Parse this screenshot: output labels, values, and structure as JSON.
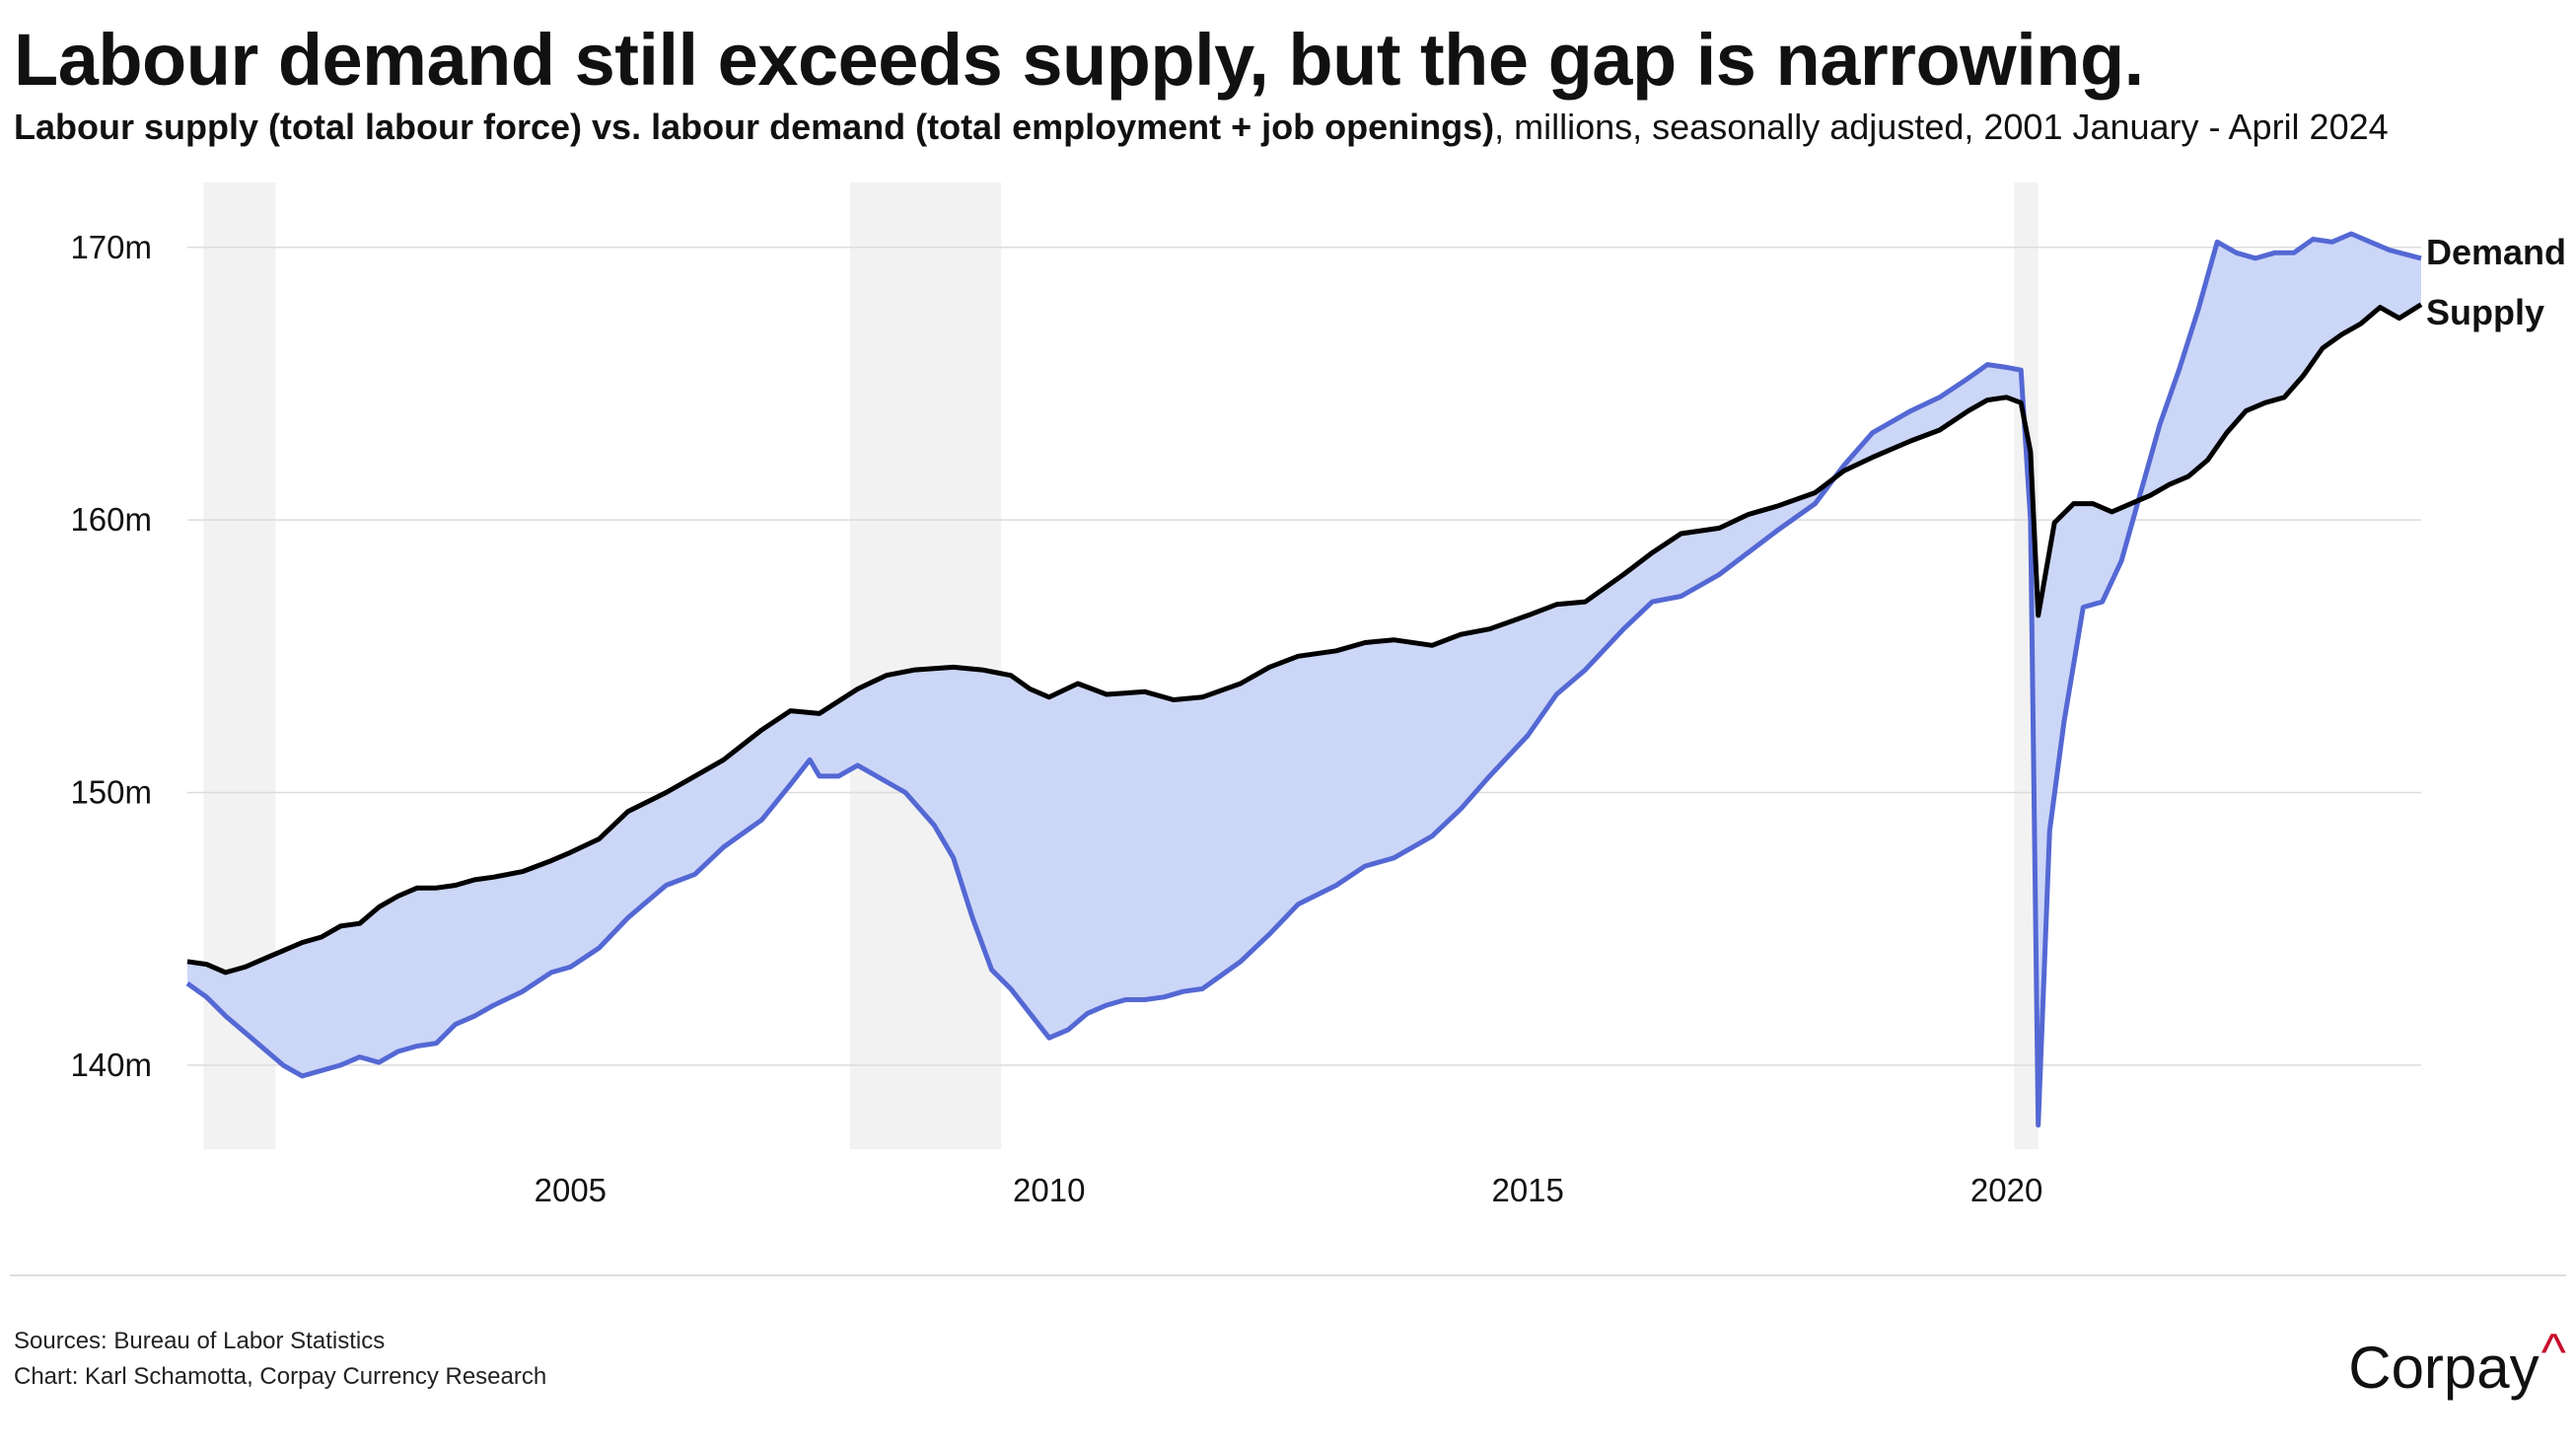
{
  "header": {
    "title": "Labour demand still exceeds supply, but the gap is narrowing.",
    "subtitle_bold": "Labour supply (total labour force) vs. labour demand (total employment + job openings)",
    "subtitle_rest": ", millions, seasonally adjusted, 2001 January - April 2024"
  },
  "footer": {
    "sources": "Sources: Bureau of Labor Statistics",
    "credit": "Chart: Karl Schamotta, Corpay Currency Research",
    "logo": "Corpay",
    "logo_mark": "^"
  },
  "colors": {
    "demand": "#5468d4",
    "supply": "#000000",
    "gap_fill": "#ccd6f7",
    "recession": "#f2f2f2",
    "grid": "#dcdcdc"
  },
  "chart_data": {
    "type": "line",
    "title": "Labour demand still exceeds supply, but the gap is narrowing.",
    "x_unit": "year",
    "xlim": [
      2001.0,
      2024.33
    ],
    "ylim": [
      137.1,
      172.2
    ],
    "y_ticks": [
      {
        "value": 140,
        "label": "140m"
      },
      {
        "value": 150,
        "label": "150m"
      },
      {
        "value": 160,
        "label": "160m"
      },
      {
        "value": 170,
        "label": "170m"
      }
    ],
    "x_ticks": [
      {
        "value": 2005,
        "label": "2005"
      },
      {
        "value": 2010,
        "label": "2010"
      },
      {
        "value": 2015,
        "label": "2015"
      },
      {
        "value": 2020,
        "label": "2020"
      }
    ],
    "recessions": [
      [
        2001.17,
        2001.92
      ],
      [
        2007.92,
        2009.5
      ],
      [
        2020.08,
        2020.33
      ]
    ],
    "series": [
      {
        "name": "Demand",
        "points": [
          [
            2001.0,
            143.0
          ],
          [
            2001.2,
            142.5
          ],
          [
            2001.4,
            141.8
          ],
          [
            2001.6,
            141.2
          ],
          [
            2001.8,
            140.6
          ],
          [
            2002.0,
            140.0
          ],
          [
            2002.2,
            139.6
          ],
          [
            2002.4,
            139.8
          ],
          [
            2002.6,
            140.0
          ],
          [
            2002.8,
            140.3
          ],
          [
            2003.0,
            140.1
          ],
          [
            2003.2,
            140.5
          ],
          [
            2003.4,
            140.7
          ],
          [
            2003.6,
            140.8
          ],
          [
            2003.8,
            141.5
          ],
          [
            2004.0,
            141.8
          ],
          [
            2004.2,
            142.2
          ],
          [
            2004.5,
            142.7
          ],
          [
            2004.8,
            143.4
          ],
          [
            2005.0,
            143.6
          ],
          [
            2005.3,
            144.3
          ],
          [
            2005.6,
            145.4
          ],
          [
            2006.0,
            146.6
          ],
          [
            2006.3,
            147.0
          ],
          [
            2006.6,
            148.0
          ],
          [
            2007.0,
            149.0
          ],
          [
            2007.3,
            150.3
          ],
          [
            2007.5,
            151.2
          ],
          [
            2007.6,
            150.6
          ],
          [
            2007.8,
            150.6
          ],
          [
            2008.0,
            151.0
          ],
          [
            2008.3,
            150.4
          ],
          [
            2008.5,
            150.0
          ],
          [
            2008.8,
            148.8
          ],
          [
            2009.0,
            147.6
          ],
          [
            2009.2,
            145.4
          ],
          [
            2009.4,
            143.5
          ],
          [
            2009.6,
            142.8
          ],
          [
            2009.8,
            141.9
          ],
          [
            2010.0,
            141.0
          ],
          [
            2010.2,
            141.3
          ],
          [
            2010.4,
            141.9
          ],
          [
            2010.6,
            142.2
          ],
          [
            2010.8,
            142.4
          ],
          [
            2011.0,
            142.4
          ],
          [
            2011.2,
            142.5
          ],
          [
            2011.4,
            142.7
          ],
          [
            2011.6,
            142.8
          ],
          [
            2011.8,
            143.3
          ],
          [
            2012.0,
            143.8
          ],
          [
            2012.3,
            144.8
          ],
          [
            2012.6,
            145.9
          ],
          [
            2013.0,
            146.6
          ],
          [
            2013.3,
            147.3
          ],
          [
            2013.6,
            147.6
          ],
          [
            2014.0,
            148.4
          ],
          [
            2014.3,
            149.4
          ],
          [
            2014.6,
            150.6
          ],
          [
            2015.0,
            152.1
          ],
          [
            2015.3,
            153.6
          ],
          [
            2015.6,
            154.5
          ],
          [
            2016.0,
            156.0
          ],
          [
            2016.3,
            157.0
          ],
          [
            2016.6,
            157.2
          ],
          [
            2017.0,
            158.0
          ],
          [
            2017.3,
            158.8
          ],
          [
            2017.6,
            159.6
          ],
          [
            2018.0,
            160.6
          ],
          [
            2018.3,
            162.0
          ],
          [
            2018.6,
            163.2
          ],
          [
            2019.0,
            164.0
          ],
          [
            2019.3,
            164.5
          ],
          [
            2019.6,
            165.2
          ],
          [
            2019.8,
            165.7
          ],
          [
            2020.0,
            165.6
          ],
          [
            2020.15,
            165.5
          ],
          [
            2020.25,
            160.0
          ],
          [
            2020.33,
            137.8
          ],
          [
            2020.45,
            148.6
          ],
          [
            2020.6,
            152.6
          ],
          [
            2020.8,
            156.8
          ],
          [
            2021.0,
            157.0
          ],
          [
            2021.2,
            158.5
          ],
          [
            2021.4,
            161.0
          ],
          [
            2021.6,
            163.5
          ],
          [
            2021.8,
            165.5
          ],
          [
            2022.0,
            167.7
          ],
          [
            2022.2,
            170.2
          ],
          [
            2022.4,
            169.8
          ],
          [
            2022.6,
            169.6
          ],
          [
            2022.8,
            169.8
          ],
          [
            2023.0,
            169.8
          ],
          [
            2023.2,
            170.3
          ],
          [
            2023.4,
            170.2
          ],
          [
            2023.6,
            170.5
          ],
          [
            2023.8,
            170.2
          ],
          [
            2024.0,
            169.9
          ],
          [
            2024.33,
            169.6
          ]
        ]
      },
      {
        "name": "Supply",
        "points": [
          [
            2001.0,
            143.8
          ],
          [
            2001.2,
            143.7
          ],
          [
            2001.4,
            143.4
          ],
          [
            2001.6,
            143.6
          ],
          [
            2001.8,
            143.9
          ],
          [
            2002.0,
            144.2
          ],
          [
            2002.2,
            144.5
          ],
          [
            2002.4,
            144.7
          ],
          [
            2002.6,
            145.1
          ],
          [
            2002.8,
            145.2
          ],
          [
            2003.0,
            145.8
          ],
          [
            2003.2,
            146.2
          ],
          [
            2003.4,
            146.5
          ],
          [
            2003.6,
            146.5
          ],
          [
            2003.8,
            146.6
          ],
          [
            2004.0,
            146.8
          ],
          [
            2004.2,
            146.9
          ],
          [
            2004.5,
            147.1
          ],
          [
            2004.8,
            147.5
          ],
          [
            2005.0,
            147.8
          ],
          [
            2005.3,
            148.3
          ],
          [
            2005.6,
            149.3
          ],
          [
            2006.0,
            150.0
          ],
          [
            2006.3,
            150.6
          ],
          [
            2006.6,
            151.2
          ],
          [
            2007.0,
            152.3
          ],
          [
            2007.3,
            153.0
          ],
          [
            2007.6,
            152.9
          ],
          [
            2008.0,
            153.8
          ],
          [
            2008.3,
            154.3
          ],
          [
            2008.6,
            154.5
          ],
          [
            2009.0,
            154.6
          ],
          [
            2009.3,
            154.5
          ],
          [
            2009.6,
            154.3
          ],
          [
            2009.8,
            153.8
          ],
          [
            2010.0,
            153.5
          ],
          [
            2010.3,
            154.0
          ],
          [
            2010.6,
            153.6
          ],
          [
            2011.0,
            153.7
          ],
          [
            2011.3,
            153.4
          ],
          [
            2011.6,
            153.5
          ],
          [
            2012.0,
            154.0
          ],
          [
            2012.3,
            154.6
          ],
          [
            2012.6,
            155.0
          ],
          [
            2013.0,
            155.2
          ],
          [
            2013.3,
            155.5
          ],
          [
            2013.6,
            155.6
          ],
          [
            2014.0,
            155.4
          ],
          [
            2014.3,
            155.8
          ],
          [
            2014.6,
            156.0
          ],
          [
            2015.0,
            156.5
          ],
          [
            2015.3,
            156.9
          ],
          [
            2015.6,
            157.0
          ],
          [
            2016.0,
            158.0
          ],
          [
            2016.3,
            158.8
          ],
          [
            2016.6,
            159.5
          ],
          [
            2017.0,
            159.7
          ],
          [
            2017.3,
            160.2
          ],
          [
            2017.6,
            160.5
          ],
          [
            2018.0,
            161.0
          ],
          [
            2018.3,
            161.8
          ],
          [
            2018.6,
            162.3
          ],
          [
            2019.0,
            162.9
          ],
          [
            2019.3,
            163.3
          ],
          [
            2019.6,
            164.0
          ],
          [
            2019.8,
            164.4
          ],
          [
            2020.0,
            164.5
          ],
          [
            2020.15,
            164.3
          ],
          [
            2020.25,
            162.5
          ],
          [
            2020.33,
            156.5
          ],
          [
            2020.5,
            159.9
          ],
          [
            2020.7,
            160.6
          ],
          [
            2020.9,
            160.6
          ],
          [
            2021.1,
            160.3
          ],
          [
            2021.3,
            160.6
          ],
          [
            2021.5,
            160.9
          ],
          [
            2021.7,
            161.3
          ],
          [
            2021.9,
            161.6
          ],
          [
            2022.1,
            162.2
          ],
          [
            2022.3,
            163.2
          ],
          [
            2022.5,
            164.0
          ],
          [
            2022.7,
            164.3
          ],
          [
            2022.9,
            164.5
          ],
          [
            2023.1,
            165.3
          ],
          [
            2023.3,
            166.3
          ],
          [
            2023.5,
            166.8
          ],
          [
            2023.7,
            167.2
          ],
          [
            2023.9,
            167.8
          ],
          [
            2024.1,
            167.4
          ],
          [
            2024.33,
            167.9
          ]
        ]
      }
    ]
  }
}
